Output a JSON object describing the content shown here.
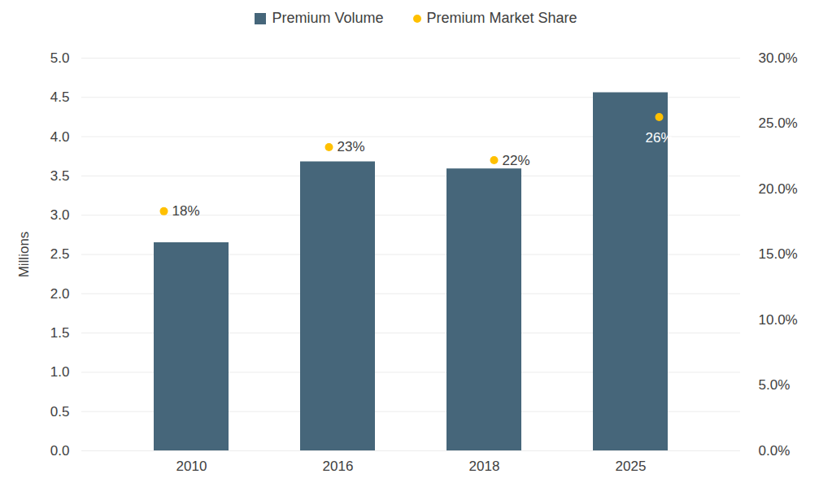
{
  "chart_data": {
    "type": "bar",
    "y_label": "Millions",
    "categories": [
      "2010",
      "2016",
      "2018",
      "2025"
    ],
    "series": [
      {
        "name": "Premium Volume",
        "type": "bar",
        "color": "#46667a",
        "values": [
          2.65,
          3.68,
          3.59,
          4.56
        ]
      },
      {
        "name": "Premium Market Share",
        "type": "scatter",
        "marker": "circle",
        "color": "#ffc000",
        "axis": "y2",
        "values": [
          18.3,
          23.2,
          22.2,
          25.5
        ],
        "value_labels": [
          "18%",
          "23%",
          "22%",
          "26%"
        ],
        "data_labels": true
      }
    ],
    "ylim": [
      0,
      5
    ],
    "yticks": [
      {
        "value": 0,
        "label": "0.0"
      },
      {
        "value": 0.5,
        "label": "0.5"
      },
      {
        "value": 1,
        "label": "1.0"
      },
      {
        "value": 1.5,
        "label": "1.5"
      },
      {
        "value": 2,
        "label": "2.0"
      },
      {
        "value": 2.5,
        "label": "2.5"
      },
      {
        "value": 3,
        "label": "3.0"
      },
      {
        "value": 3.5,
        "label": "3.5"
      },
      {
        "value": 4,
        "label": "4.0"
      },
      {
        "value": 4.5,
        "label": "4.5"
      },
      {
        "value": 5,
        "label": "5.0"
      }
    ],
    "y2lim": [
      0,
      30
    ],
    "y2ticks": [
      {
        "value": 0,
        "label": "0.0%"
      },
      {
        "value": 5,
        "label": "5.0%"
      },
      {
        "value": 10,
        "label": "10.0%"
      },
      {
        "value": 15,
        "label": "15.0%"
      },
      {
        "value": 20,
        "label": "20.0%"
      },
      {
        "value": 25,
        "label": "25.0%"
      },
      {
        "value": 30,
        "label": "30.0%"
      }
    ],
    "grid": true,
    "legend": "top"
  }
}
